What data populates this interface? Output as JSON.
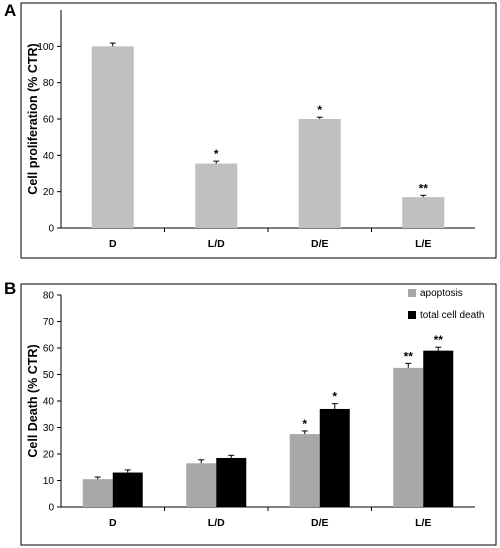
{
  "panels": {
    "a": {
      "letter": "A"
    },
    "b": {
      "letter": "B"
    }
  },
  "chart_data": [
    {
      "type": "bar",
      "panel": "A",
      "categories": [
        "D",
        "L/D",
        "D/E",
        "L/E"
      ],
      "series": [
        {
          "values": [
            100,
            35.5,
            60,
            17
          ],
          "errors": [
            1.8,
            1.3,
            1.0,
            1.0
          ],
          "color": "#c0c0c0"
        }
      ],
      "annotations": [
        "",
        "*",
        "*",
        "**"
      ],
      "ylabel": "Cell proliferation (% CTR)",
      "ylim": [
        0,
        120
      ],
      "yticks": [
        0,
        20,
        40,
        60,
        80,
        100
      ],
      "grid": false
    },
    {
      "type": "bar",
      "panel": "B",
      "categories": [
        "D",
        "L/D",
        "D/E",
        "L/E"
      ],
      "series": [
        {
          "name": "apoptosis",
          "values": [
            10.5,
            16.5,
            27.5,
            52.5
          ],
          "errors": [
            0.8,
            1.3,
            1.2,
            1.7
          ],
          "color": "#a8a8a8",
          "annotations": [
            "",
            "",
            "*",
            "**"
          ]
        },
        {
          "name": "total cell death",
          "values": [
            13,
            18.5,
            37,
            59
          ],
          "errors": [
            1.0,
            1.0,
            2.0,
            1.3
          ],
          "color": "#000000",
          "annotations": [
            "",
            "",
            "*",
            "**"
          ]
        }
      ],
      "ylabel": "Cell Death (% CTR)",
      "ylim": [
        0,
        80
      ],
      "yticks": [
        0,
        10,
        20,
        30,
        40,
        50,
        60,
        70,
        80
      ],
      "legend_position": "top-right",
      "grid": false
    }
  ]
}
